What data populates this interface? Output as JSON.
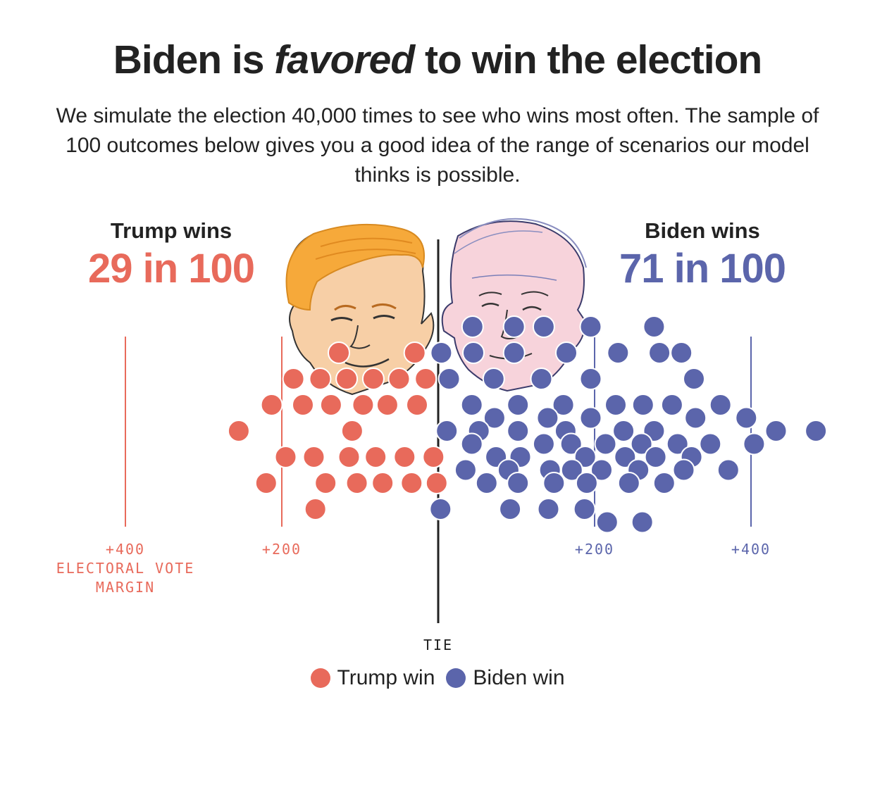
{
  "title": {
    "before": "Biden is ",
    "emphasis": "favored",
    "after": " to win the election"
  },
  "subtitle": "We simulate the election 40,000 times to see who wins most often. The sample of 100 outcomes below gives you a good idea of the range of scenarios our model thinks is possible.",
  "trump": {
    "label": "Trump wins",
    "count": "29 in 100",
    "color": "#e86a5b"
  },
  "biden": {
    "label": "Biden wins",
    "count": "71 in 100",
    "color": "#5b65ab"
  },
  "axis": {
    "trump_400": "+400",
    "trump_200": "+200",
    "axis_title_line1": "ELECTORAL VOTE",
    "axis_title_line2": "MARGIN",
    "biden_200": "+200",
    "biden_400": "+400",
    "tie": "TIE"
  },
  "legend": {
    "trump": "Trump win",
    "biden": "Biden win"
  },
  "illustrations": [
    "trump-face-illustration",
    "biden-face-illustration"
  ],
  "chart_data": {
    "type": "scatter",
    "x_units": "electoral vote margin (negative = Trump, positive = Biden)",
    "xlim": [
      -400,
      480
    ],
    "series": [
      {
        "name": "Trump win",
        "color": "#e86a5b",
        "points": [
          {
            "x": -127,
            "lane": 6
          },
          {
            "x": -30,
            "lane": 6
          },
          {
            "x": -185,
            "lane": 4
          },
          {
            "x": -151,
            "lane": 4
          },
          {
            "x": -117,
            "lane": 4
          },
          {
            "x": -83,
            "lane": 4
          },
          {
            "x": -50,
            "lane": 4
          },
          {
            "x": -16,
            "lane": 4
          },
          {
            "x": -213,
            "lane": 2
          },
          {
            "x": -173,
            "lane": 2
          },
          {
            "x": -137,
            "lane": 2
          },
          {
            "x": -96,
            "lane": 2
          },
          {
            "x": -65,
            "lane": 2
          },
          {
            "x": -27,
            "lane": 2
          },
          {
            "x": -255,
            "lane": 0
          },
          {
            "x": -110,
            "lane": 0
          },
          {
            "x": -195,
            "lane": -2
          },
          {
            "x": -159,
            "lane": -2
          },
          {
            "x": -114,
            "lane": -2
          },
          {
            "x": -80,
            "lane": -2
          },
          {
            "x": -43,
            "lane": -2
          },
          {
            "x": -6,
            "lane": -2
          },
          {
            "x": -220,
            "lane": -4
          },
          {
            "x": -144,
            "lane": -4
          },
          {
            "x": -104,
            "lane": -4
          },
          {
            "x": -71,
            "lane": -4
          },
          {
            "x": -34,
            "lane": -4
          },
          {
            "x": -2,
            "lane": -4
          },
          {
            "x": -157,
            "lane": -6
          }
        ]
      },
      {
        "name": "Biden win",
        "color": "#5b65ab",
        "points": [
          {
            "x": 44,
            "lane": 8
          },
          {
            "x": 97,
            "lane": 8
          },
          {
            "x": 135,
            "lane": 8
          },
          {
            "x": 195,
            "lane": 8
          },
          {
            "x": 276,
            "lane": 8
          },
          {
            "x": 4,
            "lane": 6
          },
          {
            "x": 45,
            "lane": 6
          },
          {
            "x": 97,
            "lane": 6
          },
          {
            "x": 164,
            "lane": 6
          },
          {
            "x": 230,
            "lane": 6
          },
          {
            "x": 283,
            "lane": 6
          },
          {
            "x": 311,
            "lane": 6
          },
          {
            "x": 14,
            "lane": 4
          },
          {
            "x": 71,
            "lane": 4
          },
          {
            "x": 132,
            "lane": 4
          },
          {
            "x": 195,
            "lane": 4
          },
          {
            "x": 327,
            "lane": 4
          },
          {
            "x": 43,
            "lane": 2
          },
          {
            "x": 102,
            "lane": 2
          },
          {
            "x": 160,
            "lane": 2
          },
          {
            "x": 227,
            "lane": 2
          },
          {
            "x": 262,
            "lane": 2
          },
          {
            "x": 299,
            "lane": 2
          },
          {
            "x": 361,
            "lane": 2
          },
          {
            "x": 72,
            "lane": 1
          },
          {
            "x": 140,
            "lane": 1
          },
          {
            "x": 195,
            "lane": 1
          },
          {
            "x": 329,
            "lane": 1
          },
          {
            "x": 394,
            "lane": 1
          },
          {
            "x": 11,
            "lane": 0
          },
          {
            "x": 52,
            "lane": 0
          },
          {
            "x": 102,
            "lane": 0
          },
          {
            "x": 163,
            "lane": 0
          },
          {
            "x": 237,
            "lane": 0
          },
          {
            "x": 276,
            "lane": 0
          },
          {
            "x": 432,
            "lane": 0
          },
          {
            "x": 483,
            "lane": 0
          },
          {
            "x": 43,
            "lane": -1
          },
          {
            "x": 135,
            "lane": -1
          },
          {
            "x": 170,
            "lane": -1
          },
          {
            "x": 214,
            "lane": -1
          },
          {
            "x": 260,
            "lane": -1
          },
          {
            "x": 306,
            "lane": -1
          },
          {
            "x": 348,
            "lane": -1
          },
          {
            "x": 404,
            "lane": -1
          },
          {
            "x": 74,
            "lane": -2
          },
          {
            "x": 105,
            "lane": -2
          },
          {
            "x": 188,
            "lane": -2
          },
          {
            "x": 239,
            "lane": -2
          },
          {
            "x": 278,
            "lane": -2
          },
          {
            "x": 324,
            "lane": -2
          },
          {
            "x": 35,
            "lane": -3
          },
          {
            "x": 90,
            "lane": -3
          },
          {
            "x": 143,
            "lane": -3
          },
          {
            "x": 171,
            "lane": -3
          },
          {
            "x": 209,
            "lane": -3
          },
          {
            "x": 256,
            "lane": -3
          },
          {
            "x": 314,
            "lane": -3
          },
          {
            "x": 371,
            "lane": -3
          },
          {
            "x": 62,
            "lane": -4
          },
          {
            "x": 102,
            "lane": -4
          },
          {
            "x": 148,
            "lane": -4
          },
          {
            "x": 190,
            "lane": -4
          },
          {
            "x": 244,
            "lane": -4
          },
          {
            "x": 289,
            "lane": -4
          },
          {
            "x": 3,
            "lane": -6
          },
          {
            "x": 92,
            "lane": -6
          },
          {
            "x": 141,
            "lane": -6
          },
          {
            "x": 187,
            "lane": -6
          },
          {
            "x": 216,
            "lane": -7
          },
          {
            "x": 261,
            "lane": -7
          }
        ]
      }
    ],
    "reference_lines": [
      {
        "x": -400,
        "label": "+400",
        "side": "Trump"
      },
      {
        "x": -200,
        "label": "+200",
        "side": "Trump"
      },
      {
        "x": 0,
        "label": "TIE"
      },
      {
        "x": 200,
        "label": "+200",
        "side": "Biden"
      },
      {
        "x": 400,
        "label": "+400",
        "side": "Biden"
      }
    ],
    "legend_position": "bottom-center",
    "grid": false
  }
}
